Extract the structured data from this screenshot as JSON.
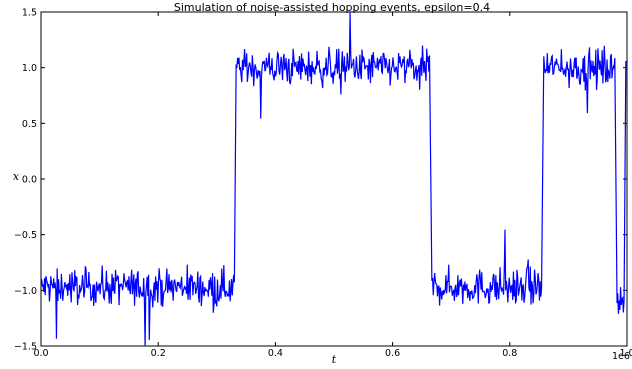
{
  "chart_data": {
    "type": "line",
    "title": "Simulation of noise-assisted hopping events, epsilon=0.4",
    "xlabel": "t",
    "ylabel": "x",
    "x_offset_label": "1e6",
    "xlim": [
      0.0,
      1.0
    ],
    "ylim": [
      -1.5,
      1.5
    ],
    "xticks": [
      0.0,
      0.2,
      0.4,
      0.6,
      0.8,
      1.0
    ],
    "xtick_labels": [
      "0.0",
      "0.2",
      "0.4",
      "0.6",
      "0.8",
      "1.0"
    ],
    "yticks": [
      -1.5,
      -1.0,
      -0.5,
      0.0,
      0.5,
      1.0,
      1.5
    ],
    "ytick_labels": [
      "−1.5",
      "−1.0",
      "−0.5",
      "0.0",
      "0.5",
      "1.0",
      "1.5"
    ],
    "grid": false,
    "line_color": "#0000ff",
    "noise_amplitude": 0.08,
    "segments": [
      {
        "x_start": 0.0,
        "x_end": 0.33,
        "level": -0.97
      },
      {
        "x_start": 0.33,
        "x_end": 0.333,
        "level": 0.0,
        "transition": true
      },
      {
        "x_start": 0.333,
        "x_end": 0.664,
        "level": 1.0
      },
      {
        "x_start": 0.664,
        "x_end": 0.667,
        "level": 0.0,
        "transition": true
      },
      {
        "x_start": 0.667,
        "x_end": 0.855,
        "level": -0.97
      },
      {
        "x_start": 0.855,
        "x_end": 0.858,
        "level": 0.0,
        "transition": true
      },
      {
        "x_start": 0.858,
        "x_end": 0.98,
        "level": 1.0
      },
      {
        "x_start": 0.98,
        "x_end": 0.983,
        "level": 0.0,
        "transition": true
      },
      {
        "x_start": 0.983,
        "x_end": 0.996,
        "level": -1.05
      },
      {
        "x_start": 0.996,
        "x_end": 0.998,
        "level": 0.0,
        "transition": true
      },
      {
        "x_start": 0.998,
        "x_end": 1.0,
        "level": 0.95
      }
    ]
  }
}
